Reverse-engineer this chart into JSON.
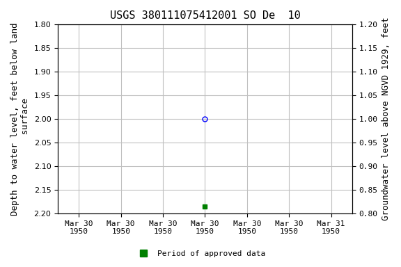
{
  "title": "USGS 380111075412001 SO De  10",
  "ylabel_left": "Depth to water level, feet below land\n surface",
  "ylabel_right": "Groundwater level above NGVD 1929, feet",
  "ylim_left_top": 1.8,
  "ylim_left_bottom": 2.2,
  "ylim_right_top": 1.2,
  "ylim_right_bottom": 0.8,
  "yticks_left": [
    1.8,
    1.85,
    1.9,
    1.95,
    2.0,
    2.05,
    2.1,
    2.15,
    2.2
  ],
  "yticks_right": [
    1.2,
    1.15,
    1.1,
    1.05,
    1.0,
    0.95,
    0.9,
    0.85,
    0.8
  ],
  "yticks_right_labels": [
    "1.20",
    "1.15",
    "1.10",
    "1.05",
    "1.00",
    "0.95",
    "0.90",
    "0.85",
    "0.80"
  ],
  "blue_point_x": 3,
  "blue_point_y": 2.0,
  "green_point_x": 3,
  "green_point_y": 2.185,
  "x_tick_labels": [
    "Mar 30\n1950",
    "Mar 30\n1950",
    "Mar 30\n1950",
    "Mar 30\n1950",
    "Mar 30\n1950",
    "Mar 30\n1950",
    "Mar 31\n1950"
  ],
  "x_positions": [
    0,
    1,
    2,
    3,
    4,
    5,
    6
  ],
  "xlim": [
    -0.5,
    6.5
  ],
  "legend_label": "Period of approved data",
  "legend_color": "#008000",
  "background_color": "#ffffff",
  "grid_color": "#c0c0c0",
  "title_fontsize": 11,
  "axis_label_fontsize": 9,
  "tick_fontsize": 8
}
